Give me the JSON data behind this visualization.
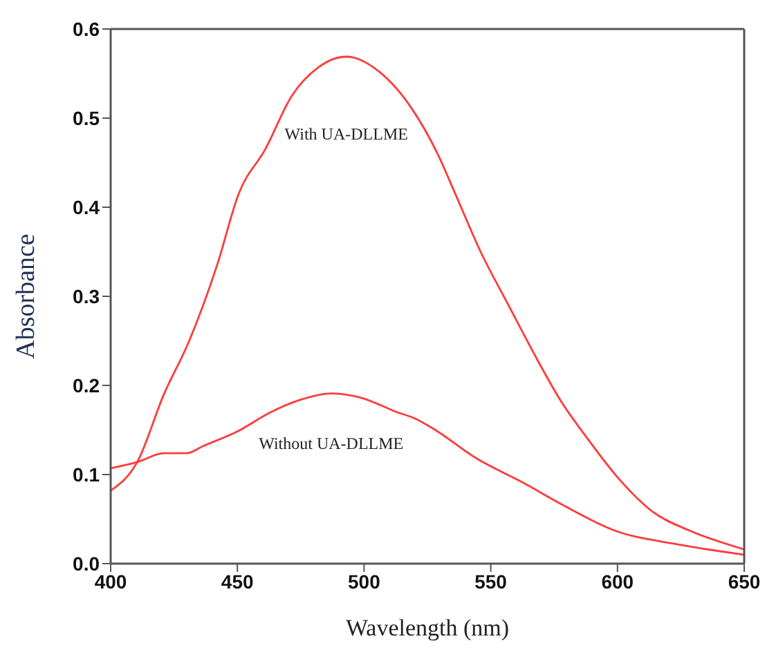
{
  "chart_data": {
    "type": "line",
    "xlabel": "Wavelength (nm)",
    "ylabel": "Absorbance",
    "xlim": [
      400,
      650
    ],
    "xticks": [
      400,
      450,
      500,
      550,
      600,
      650
    ],
    "ylim": [
      0,
      0.6
    ],
    "yticks": [
      {
        "value": 0,
        "label": "0.0"
      },
      0.1,
      0.2,
      0.3,
      0.4,
      0.5,
      0.6
    ],
    "marker": "none",
    "line_style": "solid",
    "series": [
      {
        "name": "With UA-DLLME",
        "color": "#ff3b3b",
        "x": [
          400,
          410.5,
          421,
          431,
          442,
          450.5,
          461,
          471.5,
          482,
          493,
          506,
          519,
          529,
          536,
          546,
          557,
          567,
          578,
          588,
          600,
          614,
          628.5,
          650
        ],
        "values": [
          0.082,
          0.114,
          0.19,
          0.25,
          0.335,
          0.415,
          0.465,
          0.525,
          0.557,
          0.569,
          0.552,
          0.51,
          0.46,
          0.415,
          0.35,
          0.29,
          0.236,
          0.181,
          0.141,
          0.097,
          0.058,
          0.037,
          0.016
        ]
      },
      {
        "name": "Without UA-DLLME",
        "color": "#ff3b3b",
        "x": [
          400,
          410.5,
          421,
          430,
          436.5,
          450.5,
          462.5,
          475,
          487,
          499,
          513,
          520,
          527,
          545,
          562,
          579,
          599,
          623,
          650
        ],
        "values": [
          0.107,
          0.114,
          0.124,
          0.124,
          0.132,
          0.149,
          0.169,
          0.184,
          0.191,
          0.186,
          0.17,
          0.163,
          0.152,
          0.117,
          0.092,
          0.065,
          0.037,
          0.022,
          0.01
        ]
      }
    ]
  }
}
